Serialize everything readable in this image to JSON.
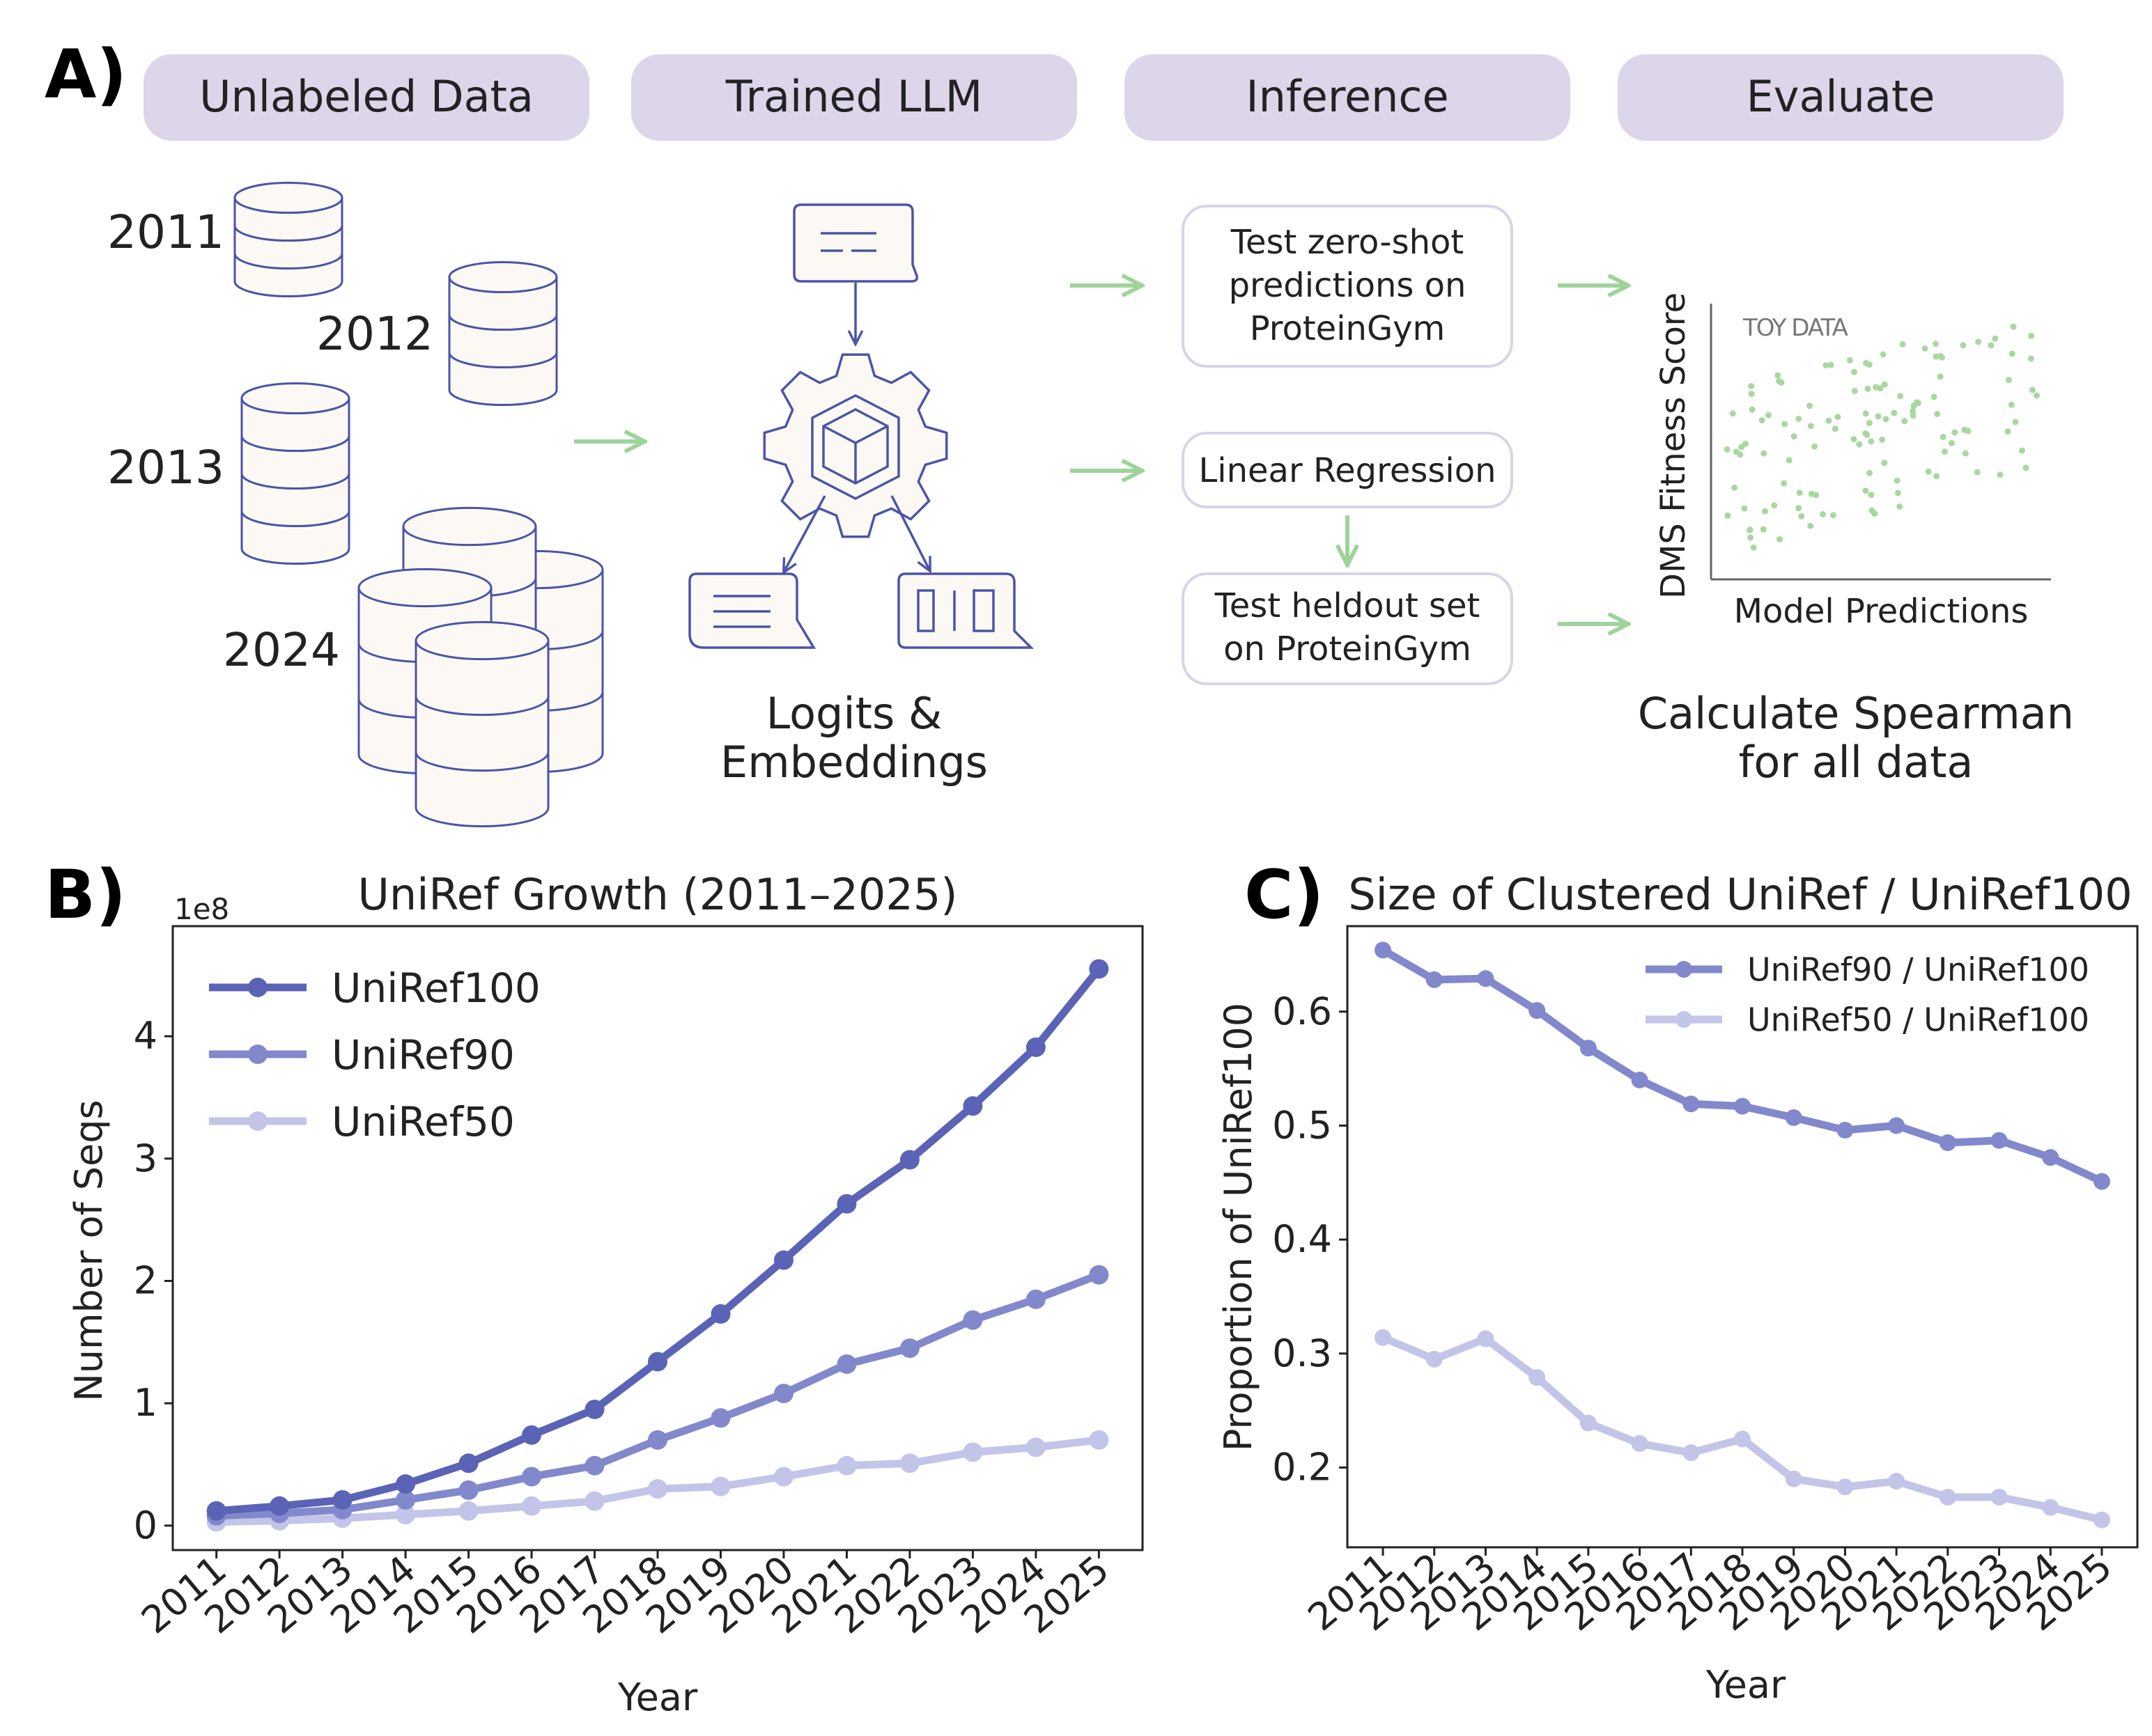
{
  "panel_a": {
    "letter": "A)",
    "stages": [
      "Unlabeled Data",
      "Trained LLM",
      "Inference",
      "Evaluate"
    ],
    "years": [
      "2011",
      "2012",
      "2013",
      "2024"
    ],
    "logits_label": [
      "Logits &",
      "Embeddings"
    ],
    "zero_shot_box": [
      "Test zero-shot",
      "predictions on",
      "ProteinGym"
    ],
    "linreg_box": "Linear Regression",
    "heldout_box": [
      "Test heldout set",
      "on ProteinGym"
    ],
    "toy_plot": {
      "ylabel": "DMS Fitness Score",
      "xlabel": "Model Predictions",
      "watermark": "TOY DATA"
    },
    "spearman_label": [
      "Calculate Spearman",
      "for all data"
    ],
    "colors": {
      "stage_fill": "#ddd5ea",
      "line": "#4a55a8",
      "arrow": "#9fd39a",
      "db_fill": "#fcf9f4",
      "box_border": "#d8d4e8"
    }
  },
  "panel_b": {
    "letter": "B)",
    "chart_data": {
      "type": "line",
      "title": "UniRef Growth (2011–2025)",
      "xlabel": "Year",
      "ylabel": "Number of Seqs",
      "offset_label": "1e8",
      "ylim": [
        -0.2,
        4.9
      ],
      "yticks": [
        0,
        1,
        2,
        3,
        4
      ],
      "categories": [
        "2011",
        "2012",
        "2013",
        "2014",
        "2015",
        "2016",
        "2017",
        "2018",
        "2019",
        "2020",
        "2021",
        "2022",
        "2023",
        "2024",
        "2025"
      ],
      "legend_position": "top-left",
      "series": [
        {
          "name": "UniRef100",
          "color": "#5a63b5",
          "values": [
            0.12,
            0.16,
            0.21,
            0.34,
            0.51,
            0.74,
            0.95,
            1.34,
            1.73,
            2.17,
            2.63,
            2.99,
            3.43,
            3.91,
            4.55
          ]
        },
        {
          "name": "UniRef90",
          "color": "#8188cc",
          "values": [
            0.08,
            0.1,
            0.13,
            0.21,
            0.29,
            0.4,
            0.49,
            0.7,
            0.88,
            1.08,
            1.32,
            1.45,
            1.68,
            1.85,
            2.05
          ]
        },
        {
          "name": "UniRef50",
          "color": "#c2c5e8",
          "values": [
            0.03,
            0.04,
            0.06,
            0.09,
            0.12,
            0.16,
            0.2,
            0.3,
            0.32,
            0.4,
            0.49,
            0.51,
            0.6,
            0.64,
            0.7
          ]
        }
      ]
    }
  },
  "panel_c": {
    "letter": "C)",
    "chart_data": {
      "type": "line",
      "title": "Size of Clustered UniRef / UniRef100",
      "xlabel": "Year",
      "ylabel": "Proportion of UniRef100",
      "ylim": [
        0.13,
        0.675
      ],
      "yticks": [
        0.2,
        0.3,
        0.4,
        0.5,
        0.6
      ],
      "categories": [
        "2011",
        "2012",
        "2013",
        "2014",
        "2015",
        "2016",
        "2017",
        "2018",
        "2019",
        "2020",
        "2021",
        "2022",
        "2023",
        "2024",
        "2025"
      ],
      "legend_position": "top-right",
      "series": [
        {
          "name": "UniRef90 / UniRef100",
          "color": "#8188cc",
          "values": [
            0.654,
            0.628,
            0.629,
            0.601,
            0.568,
            0.54,
            0.519,
            0.517,
            0.507,
            0.496,
            0.5,
            0.485,
            0.487,
            0.472,
            0.451
          ]
        },
        {
          "name": "UniRef50 / UniRef100",
          "color": "#c2c5e8",
          "values": [
            0.314,
            0.295,
            0.313,
            0.279,
            0.239,
            0.221,
            0.213,
            0.225,
            0.19,
            0.183,
            0.188,
            0.174,
            0.174,
            0.165,
            0.154
          ]
        }
      ]
    }
  }
}
